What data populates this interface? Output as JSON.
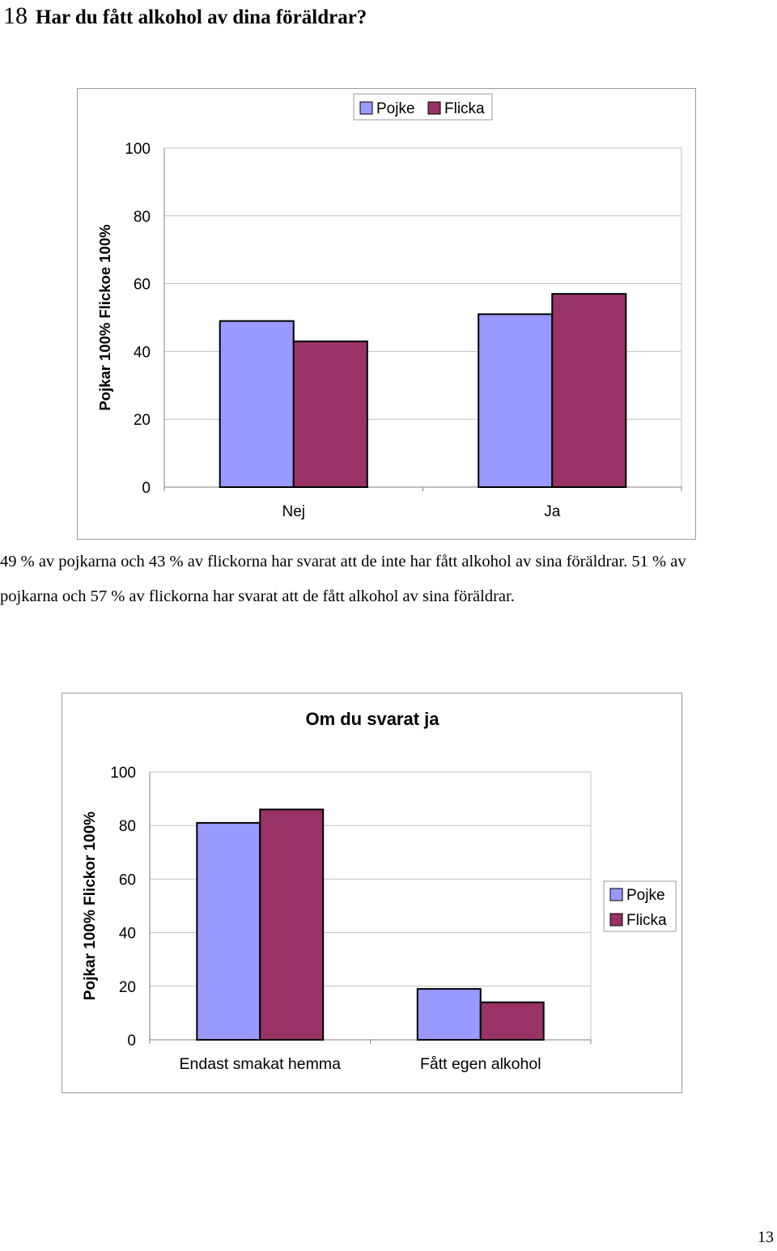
{
  "heading": {
    "number": "18",
    "text": "Har du fått alkohol av dina föräldrar?"
  },
  "body_text": "49 % av pojkarna och 43 % av flickorna har svarat att de inte har fått alkohol av sina föräldrar. 51 % av pojkarna och 57 % av flickorna har svarat att de fått alkohol av sina föräldrar.",
  "page_number": "13",
  "colors": {
    "pojke": "#9999ff",
    "flicka": "#993366",
    "grid": "#c0c0c0",
    "axis": "#808080"
  },
  "chart_data": [
    {
      "type": "bar",
      "title": "",
      "ylabel": "Pojkar 100% Flickoe 100%",
      "xlabel": "",
      "categories": [
        "Nej",
        "Ja"
      ],
      "series": [
        {
          "name": "Pojke",
          "values": [
            49,
            51
          ]
        },
        {
          "name": "Flicka",
          "values": [
            43,
            57
          ]
        }
      ],
      "ylim": [
        0,
        100
      ],
      "yticks": [
        "0",
        "20",
        "40",
        "60",
        "80",
        "100"
      ],
      "grid": true,
      "legend": "top-center"
    },
    {
      "type": "bar",
      "title": "Om du svarat ja",
      "ylabel": "Pojkar 100% Flickor 100%",
      "xlabel": "",
      "categories": [
        "Endast smakat hemma",
        "Fått egen alkohol"
      ],
      "series": [
        {
          "name": "Pojke",
          "values": [
            81,
            19
          ]
        },
        {
          "name": "Flicka",
          "values": [
            86,
            14
          ]
        }
      ],
      "ylim": [
        0,
        100
      ],
      "yticks": [
        "0",
        "20",
        "40",
        "60",
        "80",
        "100"
      ],
      "grid": true,
      "legend": "right"
    }
  ]
}
